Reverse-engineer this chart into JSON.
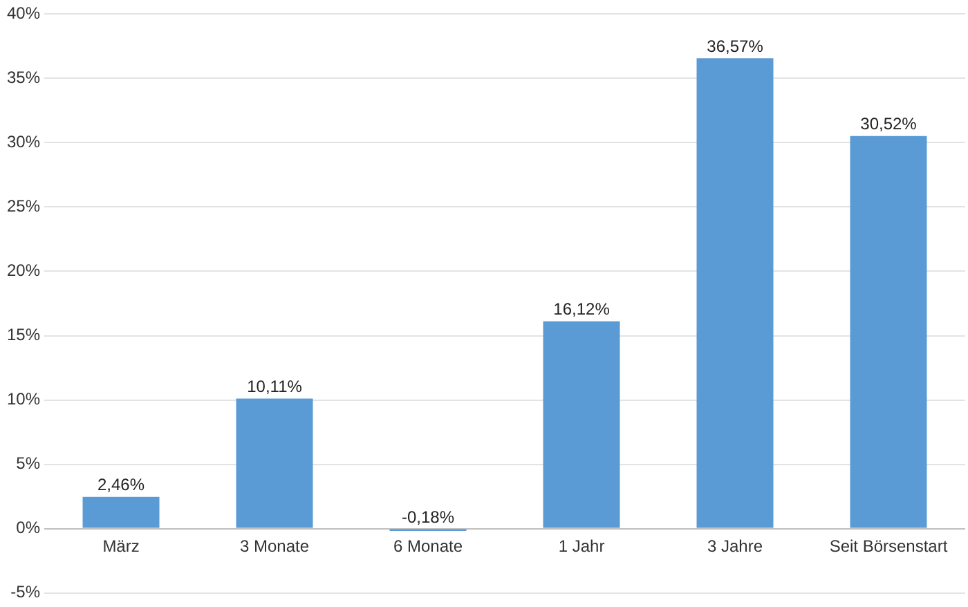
{
  "chart_data": {
    "type": "bar",
    "categories": [
      "März",
      "3 Monate",
      "6 Monate",
      "1 Jahr",
      "3 Jahre",
      "Seit Börsenstart"
    ],
    "values": [
      2.46,
      10.11,
      -0.18,
      16.12,
      36.57,
      30.52
    ],
    "value_labels": [
      "2,46%",
      "10,11%",
      "-0,18%",
      "16,12%",
      "36,57%",
      "30,52%"
    ],
    "color": "#5b9bd5",
    "ylim": [
      -5,
      40
    ],
    "yticks": [
      {
        "value": -5,
        "label": "-5%"
      },
      {
        "value": 0,
        "label": "0%"
      },
      {
        "value": 5,
        "label": "5%"
      },
      {
        "value": 10,
        "label": "10%"
      },
      {
        "value": 15,
        "label": "15%"
      },
      {
        "value": 20,
        "label": "20%"
      },
      {
        "value": 25,
        "label": "25%"
      },
      {
        "value": 30,
        "label": "30%"
      },
      {
        "value": 35,
        "label": "35%"
      },
      {
        "value": 40,
        "label": "40%"
      }
    ],
    "grid": "y",
    "legend": false
  }
}
